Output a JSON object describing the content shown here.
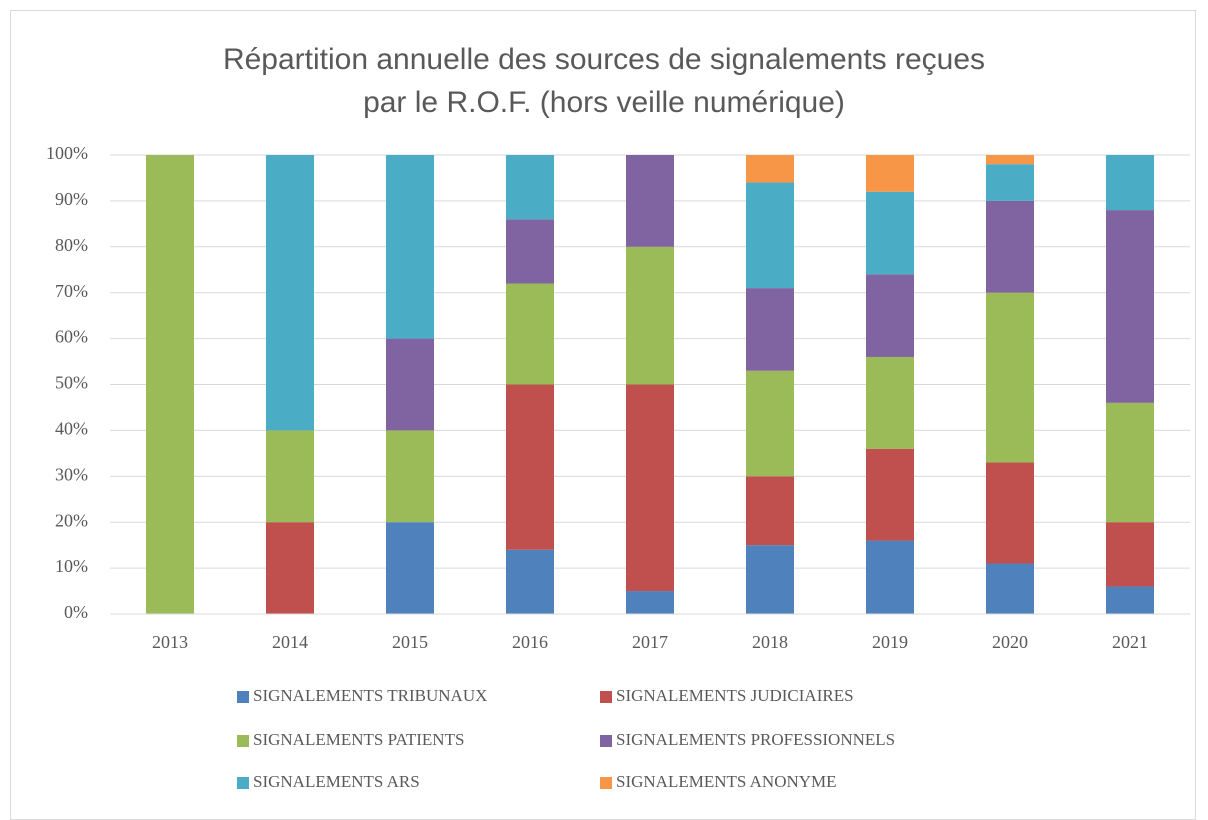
{
  "chart_data": {
    "type": "stacked_bar",
    "title": "Répartition annuelle des sources de signalements reçues par le R.O.F. (hors veille numérique)",
    "categories": [
      "2013",
      "2014",
      "2015",
      "2016",
      "2017",
      "2018",
      "2019",
      "2020",
      "2021"
    ],
    "series": [
      {
        "name": "SIGNALEMENTS TRIBUNAUX",
        "color": "#4f81bd",
        "values": [
          0,
          0,
          20,
          14,
          5,
          15,
          16,
          11,
          6
        ]
      },
      {
        "name": "SIGNALEMENTS JUDICIAIRES",
        "color": "#c0504d",
        "values": [
          0,
          20,
          0,
          36,
          45,
          15,
          20,
          22,
          14
        ]
      },
      {
        "name": "SIGNALEMENTS PATIENTS",
        "color": "#9bbb59",
        "values": [
          100,
          20,
          20,
          22,
          30,
          23,
          20,
          37,
          26
        ]
      },
      {
        "name": "SIGNALEMENTS PROFESSIONNELS",
        "color": "#8064a2",
        "values": [
          0,
          0,
          20,
          14,
          20,
          18,
          18,
          20,
          42
        ]
      },
      {
        "name": "SIGNALEMENTS ARS",
        "color": "#4bacc6",
        "values": [
          0,
          60,
          40,
          14,
          0,
          23,
          18,
          8,
          12
        ]
      },
      {
        "name": "SIGNALEMENTS ANONYME",
        "color": "#f79646",
        "values": [
          0,
          0,
          0,
          0,
          0,
          6,
          8,
          2,
          0
        ]
      }
    ],
    "ylim": [
      0,
      100
    ],
    "yticks": [
      {
        "value": 0,
        "label": "0%"
      },
      {
        "value": 10,
        "label": "10%"
      },
      {
        "value": 20,
        "label": "20%"
      },
      {
        "value": 30,
        "label": "30%"
      },
      {
        "value": 40,
        "label": "40%"
      },
      {
        "value": 50,
        "label": "50%"
      },
      {
        "value": 60,
        "label": "60%"
      },
      {
        "value": 70,
        "label": "70%"
      },
      {
        "value": 80,
        "label": "80%"
      },
      {
        "value": 90,
        "label": "90%"
      },
      {
        "value": 100,
        "label": "100%"
      }
    ],
    "grid": true,
    "legend": "bottom"
  }
}
